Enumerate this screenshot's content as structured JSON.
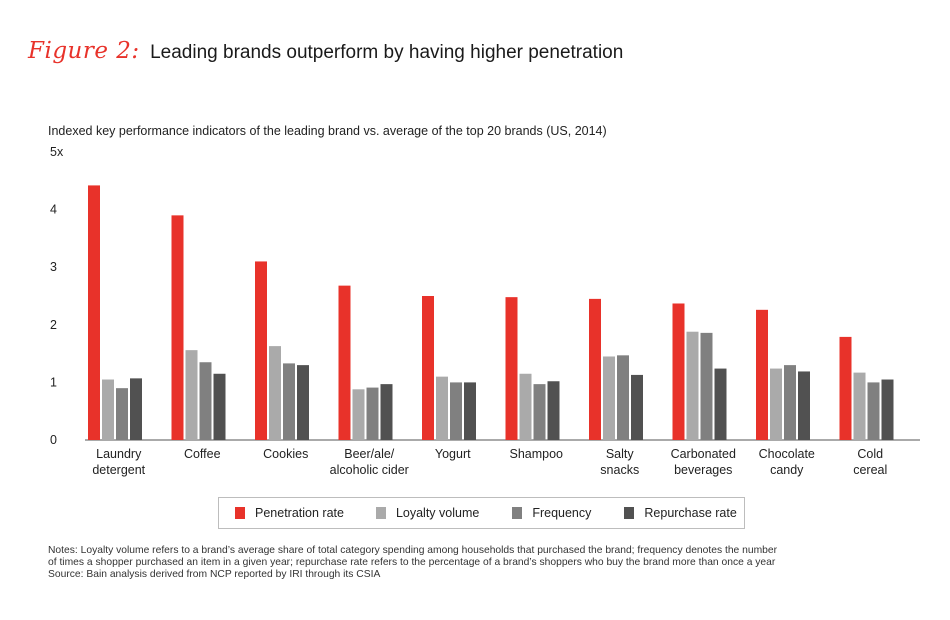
{
  "header": {
    "figure_label": "Figure 2:",
    "title": "Leading brands outperform by having higher penetration"
  },
  "chart_data": {
    "type": "bar",
    "title": "Indexed key performance indicators of the leading brand vs. average of the top 20 brands (US, 2014)",
    "ylim": [
      0,
      5
    ],
    "yticks": [
      "0",
      "1",
      "2",
      "3",
      "4",
      "5x"
    ],
    "categories": [
      [
        "Laundry",
        "detergent"
      ],
      [
        "Coffee"
      ],
      [
        "Cookies"
      ],
      [
        "Beer/ale/",
        "alcoholic cider"
      ],
      [
        "Yogurt"
      ],
      [
        "Shampoo"
      ],
      [
        "Salty",
        "snacks"
      ],
      [
        "Carbonated",
        "beverages"
      ],
      [
        "Chocolate",
        "candy"
      ],
      [
        "Cold",
        "cereal"
      ]
    ],
    "series": [
      {
        "name": "Penetration rate",
        "color": "#e8322a",
        "values": [
          4.42,
          3.9,
          3.1,
          2.68,
          2.5,
          2.48,
          2.45,
          2.37,
          2.26,
          1.79
        ]
      },
      {
        "name": "Loyalty volume",
        "color": "#aaaaaa",
        "values": [
          1.05,
          1.56,
          1.63,
          0.88,
          1.1,
          1.15,
          1.45,
          1.88,
          1.24,
          1.17
        ]
      },
      {
        "name": "Frequency",
        "color": "#808080",
        "values": [
          0.9,
          1.35,
          1.33,
          0.91,
          1.0,
          0.97,
          1.47,
          1.86,
          1.3,
          1.0
        ]
      },
      {
        "name": "Repurchase rate",
        "color": "#515151",
        "values": [
          1.07,
          1.15,
          1.3,
          0.97,
          1.0,
          1.02,
          1.13,
          1.24,
          1.19,
          1.05
        ]
      }
    ],
    "grid": false,
    "legend_position": "bottom"
  },
  "notes": {
    "line1": "Notes: Loyalty volume refers to a brand’s average share of total category spending among households that purchased the brand; frequency denotes the number",
    "line2": "of times a shopper purchased an item in a given year; repurchase rate refers to the percentage of a brand’s shoppers who buy the brand more than once a year",
    "source": "Source: Bain analysis derived from NCP reported by IRI through its CSIA"
  }
}
